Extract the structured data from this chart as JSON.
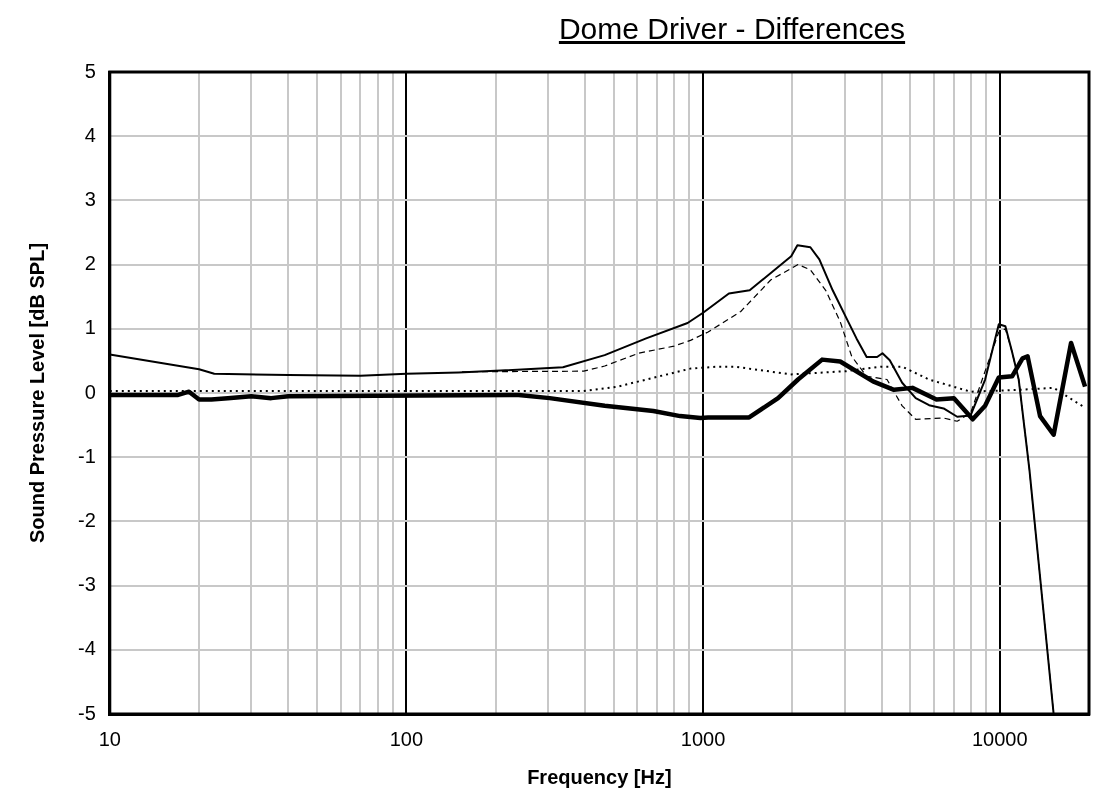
{
  "chart_data": {
    "type": "line",
    "title": "Dome Driver - Differences",
    "xlabel": "Frequency [Hz]",
    "ylabel": "Sound Pressure Level [dB SPL]",
    "log": "x",
    "grid": true,
    "legend": false,
    "marker": "none",
    "xlim": [
      10,
      20000
    ],
    "ylim": [
      -5,
      5
    ],
    "xticks": [
      10,
      {
        "value": 20,
        "label": null
      },
      {
        "value": 30,
        "label": null
      },
      {
        "value": 40,
        "label": null
      },
      {
        "value": 50,
        "label": null
      },
      {
        "value": 60,
        "label": null
      },
      {
        "value": 70,
        "label": null
      },
      {
        "value": 80,
        "label": null
      },
      {
        "value": 90,
        "label": null
      },
      100,
      {
        "value": 200,
        "label": null
      },
      {
        "value": 300,
        "label": null
      },
      {
        "value": 400,
        "label": null
      },
      {
        "value": 500,
        "label": null
      },
      {
        "value": 600,
        "label": null
      },
      {
        "value": 700,
        "label": null
      },
      {
        "value": 800,
        "label": null
      },
      {
        "value": 900,
        "label": null
      },
      1000,
      {
        "value": 2000,
        "label": null
      },
      {
        "value": 3000,
        "label": null
      },
      {
        "value": 4000,
        "label": null
      },
      {
        "value": 5000,
        "label": null
      },
      {
        "value": 6000,
        "label": null
      },
      {
        "value": 7000,
        "label": null
      },
      {
        "value": 8000,
        "label": null
      },
      {
        "value": 9000,
        "label": null
      },
      10000,
      {
        "value": 20000,
        "label": null
      }
    ],
    "yticks": [
      -5,
      -4,
      -3,
      -2,
      -1,
      0,
      1,
      2,
      3,
      4,
      5
    ],
    "series": [
      {
        "color": "#000000",
        "line_style": "solid",
        "x": [
          10,
          20,
          22.5,
          40,
          70,
          100,
          150,
          208,
          337,
          466,
          643,
          887,
          1000,
          1222,
          1436,
          1982,
          2080,
          2300,
          2466,
          2735,
          3040,
          3290,
          3560,
          3860,
          4025,
          4260,
          4690,
          5210,
          5780,
          6470,
          7190,
          7980,
          8930,
          9930,
          10450,
          11010,
          11590,
          12600,
          15200
        ],
        "values": [
          0.6,
          0.37,
          0.3,
          0.28,
          0.27,
          0.3,
          0.32,
          0.35,
          0.4,
          0.59,
          0.85,
          1.09,
          1.25,
          1.55,
          1.6,
          2.13,
          2.3,
          2.27,
          2.08,
          1.6,
          1.17,
          0.85,
          0.56,
          0.56,
          0.62,
          0.51,
          0.16,
          -0.08,
          -0.19,
          -0.24,
          -0.37,
          -0.35,
          0.21,
          1.07,
          1.04,
          0.64,
          0.21,
          -1.2,
          -5
        ]
      },
      {
        "color": "#000000",
        "line_style": "dashed",
        "x": [
          154,
          396,
          466,
          607,
          798,
          907,
          1040,
          1340,
          1690,
          2090,
          2300,
          2590,
          2900,
          3170,
          3560,
          4170,
          4690,
          5210,
          6470,
          7190,
          7980,
          8930,
          9930,
          10450,
          11010,
          11590,
          12600,
          15200
        ],
        "values": [
          0.33,
          0.34,
          0.42,
          0.62,
          0.73,
          0.82,
          0.95,
          1.27,
          1.76,
          2.0,
          1.92,
          1.6,
          1.11,
          0.57,
          0.26,
          0.21,
          -0.2,
          -0.41,
          -0.39,
          -0.44,
          -0.31,
          0.34,
          0.95,
          1.0,
          0.64,
          0.21,
          -1.2,
          -5
        ]
      },
      {
        "color": "#000000",
        "line_style": "dotted",
        "x": [
          10,
          100,
          250,
          396,
          516,
          712,
          907,
          1120,
          1280,
          1980,
          3040,
          3980,
          4690,
          5780,
          7980,
          11590,
          15200,
          19400
        ],
        "values": [
          0.03,
          0.03,
          0.03,
          0.03,
          0.1,
          0.26,
          0.38,
          0.41,
          0.41,
          0.29,
          0.34,
          0.41,
          0.41,
          0.21,
          0.02,
          0.05,
          0.08,
          -0.23
        ]
      },
      {
        "color": "#000000",
        "line_style": "solid",
        "x": [
          10,
          17,
          18.5,
          20,
          22,
          25,
          30,
          35,
          40,
          239,
          304,
          466,
          680,
          837,
          980,
          1040,
          1430,
          1790,
          2090,
          2520,
          2900,
          3740,
          4400,
          5080,
          6120,
          7010,
          8110,
          8930,
          9930,
          11010,
          11940,
          12420,
          13680,
          15200,
          17400,
          19400
        ],
        "values": [
          -0.03,
          -0.03,
          0.02,
          -0.1,
          -0.1,
          -0.08,
          -0.05,
          -0.08,
          -0.05,
          -0.03,
          -0.08,
          -0.2,
          -0.28,
          -0.36,
          -0.39,
          -0.38,
          -0.38,
          -0.08,
          0.21,
          0.52,
          0.49,
          0.18,
          0.05,
          0.08,
          -0.1,
          -0.08,
          -0.41,
          -0.2,
          0.24,
          0.26,
          0.54,
          0.57,
          -0.36,
          -0.65,
          0.78,
          0.1
        ]
      }
    ]
  }
}
